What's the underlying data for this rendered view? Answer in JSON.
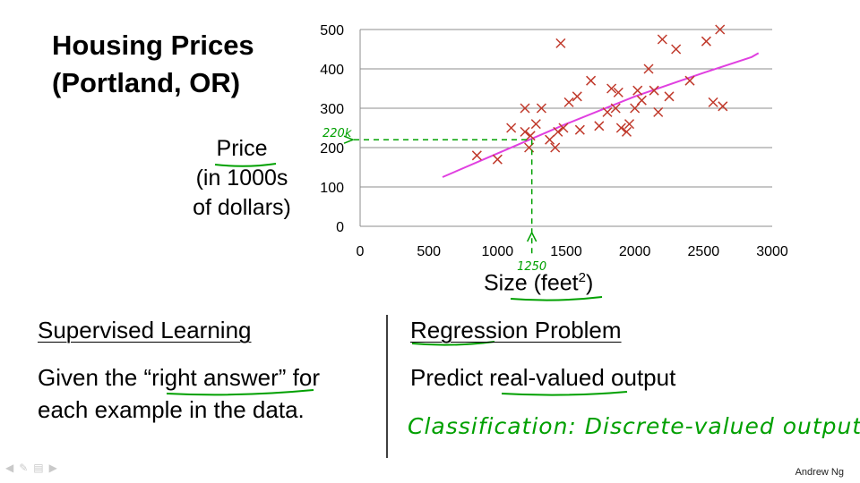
{
  "slide": {
    "title_line1": "Housing Prices",
    "title_line2": "(Portland, OR)",
    "ylabel_line1": "Price",
    "ylabel_line2": "(in 1000s",
    "ylabel_line3": "of dollars)",
    "xlabel": "Size (feet",
    "xlabel_sup": "2",
    "xlabel_close": ")",
    "author": "Andrew Ng"
  },
  "left_box": {
    "heading": "Supervised Learning",
    "line1_pre": "Given the “",
    "line1_hl": "right answer",
    "line1_post": "” for",
    "line2": "each example in the data."
  },
  "right_box": {
    "heading": "Regression Problem",
    "line1_pre": "Predict ",
    "line1_hl": "real-valued",
    "line1_post": " output",
    "handwritten": "Classification: Discrete-valued output"
  },
  "annotations": {
    "price_note": "220k",
    "size_note": "1250"
  },
  "colors": {
    "marker": "#c0392b",
    "fit": "#e040e0",
    "ink": "#00a000"
  },
  "icons": [
    "prev-arrow-icon",
    "pen-icon",
    "menu-icon",
    "next-arrow-icon"
  ],
  "chart_data": {
    "type": "scatter",
    "xlabel": "Size (feet²)",
    "ylabel": "Price (in 1000s of dollars)",
    "xlim": [
      0,
      3000
    ],
    "ylim": [
      0,
      500
    ],
    "xticks": [
      0,
      500,
      1000,
      1500,
      2000,
      2500,
      3000
    ],
    "yticks": [
      0,
      100,
      200,
      300,
      400,
      500
    ],
    "grid": true,
    "points": [
      [
        850,
        180
      ],
      [
        1000,
        170
      ],
      [
        1100,
        250
      ],
      [
        1200,
        240
      ],
      [
        1200,
        300
      ],
      [
        1230,
        200
      ],
      [
        1240,
        230
      ],
      [
        1280,
        260
      ],
      [
        1320,
        300
      ],
      [
        1380,
        220
      ],
      [
        1420,
        200
      ],
      [
        1440,
        240
      ],
      [
        1460,
        465
      ],
      [
        1480,
        250
      ],
      [
        1520,
        315
      ],
      [
        1580,
        330
      ],
      [
        1600,
        245
      ],
      [
        1680,
        370
      ],
      [
        1740,
        255
      ],
      [
        1800,
        290
      ],
      [
        1830,
        350
      ],
      [
        1860,
        300
      ],
      [
        1880,
        340
      ],
      [
        1900,
        250
      ],
      [
        1940,
        240
      ],
      [
        1960,
        260
      ],
      [
        2000,
        300
      ],
      [
        2020,
        345
      ],
      [
        2050,
        320
      ],
      [
        2100,
        400
      ],
      [
        2140,
        345
      ],
      [
        2170,
        290
      ],
      [
        2200,
        475
      ],
      [
        2250,
        330
      ],
      [
        2300,
        450
      ],
      [
        2400,
        370
      ],
      [
        2520,
        470
      ],
      [
        2570,
        315
      ],
      [
        2620,
        500
      ],
      [
        2640,
        305
      ]
    ],
    "fit_line": [
      [
        600,
        125
      ],
      [
        1000,
        185
      ],
      [
        1500,
        260
      ],
      [
        2000,
        330
      ],
      [
        2500,
        390
      ],
      [
        2850,
        430
      ],
      [
        2900,
        440
      ]
    ],
    "annotation_point": [
      1250,
      220
    ]
  }
}
